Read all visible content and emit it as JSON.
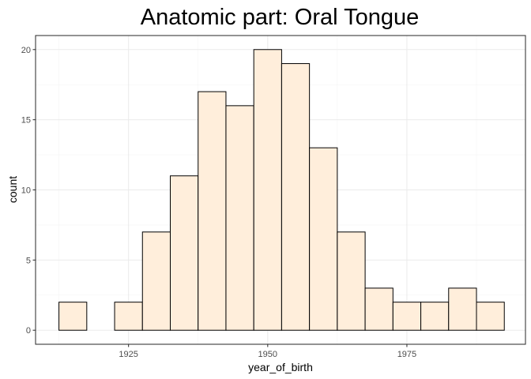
{
  "chart_data": {
    "type": "bar",
    "title": "Anatomic part: Oral Tongue",
    "xlabel": "year_of_birth",
    "ylabel": "count",
    "xlim": [
      1908.3,
      1996.3
    ],
    "ylim": [
      -1,
      21
    ],
    "x_ticks": [
      1925,
      1950,
      1975
    ],
    "y_ticks": [
      0,
      5,
      10,
      15,
      20
    ],
    "x_tick_labels": [
      "1925",
      "1950",
      "1975"
    ],
    "y_tick_labels": [
      "0",
      "5",
      "10",
      "15",
      "20"
    ],
    "grid": true,
    "bin_width": 5,
    "bin_centers": [
      1915,
      1920,
      1925,
      1930,
      1935,
      1940,
      1945,
      1950,
      1955,
      1960,
      1965,
      1970,
      1975,
      1980,
      1985,
      1990
    ],
    "values": [
      2,
      0,
      2,
      7,
      11,
      17,
      16,
      20,
      19,
      13,
      7,
      3,
      2,
      2,
      3,
      2
    ],
    "colors": {
      "fill": "#ffeedb",
      "stroke": "#000000"
    }
  }
}
